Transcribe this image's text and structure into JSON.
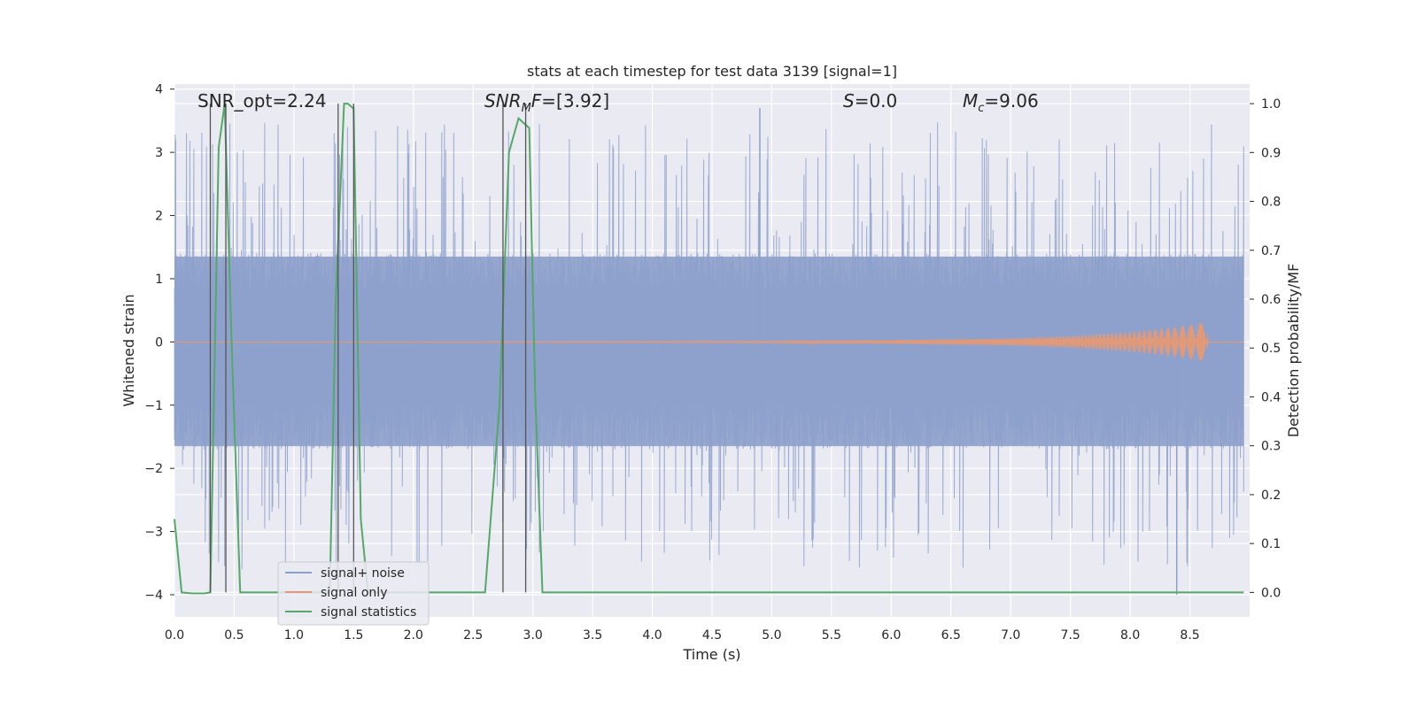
{
  "chart_data": {
    "type": "line",
    "title": "stats at each timestep for test data 3139 [signal=1]",
    "xlabel": "Time (s)",
    "ylabel": "Whitened strain",
    "y2label": "Detection probability/MF",
    "xlim": [
      0.0,
      9.0
    ],
    "ylim": [
      -4.35,
      4.08
    ],
    "y2lim": [
      -0.05,
      1.04
    ],
    "x_ticks": [
      0.0,
      0.5,
      1.0,
      1.5,
      2.0,
      2.5,
      3.0,
      3.5,
      4.0,
      4.5,
      5.0,
      5.5,
      6.0,
      6.5,
      7.0,
      7.5,
      8.0,
      8.5
    ],
    "x_tick_labels": [
      "0.0",
      "0.5",
      "1.0",
      "1.5",
      "2.0",
      "2.5",
      "3.0",
      "3.5",
      "4.0",
      "4.5",
      "5.0",
      "5.5",
      "6.0",
      "6.5",
      "7.0",
      "7.5",
      "8.0",
      "8.5"
    ],
    "y_ticks": [
      4,
      3,
      2,
      1,
      0,
      -1,
      -2,
      -3,
      -4
    ],
    "y_tick_labels": [
      "4",
      "3",
      "2",
      "1",
      "0",
      "−1",
      "−2",
      "−3",
      "−4"
    ],
    "y2_ticks": [
      1.0,
      0.9,
      0.8,
      0.7,
      0.6,
      0.5,
      0.4,
      0.3,
      0.2,
      0.1,
      0.0
    ],
    "y2_tick_labels": [
      "1.0",
      "0.9",
      "0.8",
      "0.7",
      "0.6",
      "0.5",
      "0.4",
      "0.3",
      "0.2",
      "0.1",
      "0.0"
    ],
    "grid": true,
    "legend_placement": "lower-left",
    "series": [
      {
        "name": "signal+ noise",
        "color": "#8da0cb",
        "axis": "left",
        "description_values": {
          "typical_range": [
            -1.7,
            1.4
          ],
          "peak_max": 3.7,
          "peak_min": -4.0
        }
      },
      {
        "name": "signal only",
        "color": "#e09a7a",
        "axis": "left",
        "envelope": {
          "x": [
            0.0,
            5.0,
            6.0,
            7.0,
            7.5,
            8.0,
            8.3,
            8.6,
            8.65
          ],
          "amplitude": [
            0.0,
            0.01,
            0.03,
            0.06,
            0.1,
            0.16,
            0.22,
            0.3,
            0.3
          ]
        },
        "end_x": 8.65
      },
      {
        "name": "signal statistics",
        "color": "#55a868",
        "axis": "right",
        "x": [
          0.0,
          0.06,
          0.15,
          0.25,
          0.3,
          0.37,
          0.42,
          0.48,
          0.55,
          0.6,
          1.0,
          1.3,
          1.35,
          1.42,
          1.45,
          1.5,
          1.56,
          1.62,
          1.7,
          2.0,
          2.5,
          2.6,
          2.72,
          2.8,
          2.88,
          2.97,
          3.02,
          3.08,
          3.5,
          4.0,
          5.0,
          6.0,
          7.0,
          8.0,
          8.95
        ],
        "y": [
          0.15,
          0.0,
          -0.002,
          -0.002,
          0.0,
          0.91,
          1.0,
          0.5,
          0.0,
          0.0,
          0.0,
          0.0,
          0.6,
          1.0,
          1.0,
          0.99,
          0.15,
          0.0,
          0.0,
          0.0,
          0.0,
          0.0,
          0.38,
          0.9,
          0.97,
          0.95,
          0.4,
          0.0,
          0.0,
          0.0,
          0.0,
          0.0,
          0.0,
          0.0,
          0.0
        ]
      }
    ],
    "vlines": [
      0.3,
      0.43,
      1.37,
      1.5,
      2.75,
      2.94
    ],
    "annotations": [
      {
        "text": "SNR_opt=2.24"
      },
      {
        "text": "=[3.92]",
        "italic_prefix": "SNR",
        "sub": "M",
        "italic_suffix": "F"
      },
      {
        "text": "=0.0",
        "italic_prefix": "S"
      },
      {
        "text": "=9.06",
        "italic_prefix": "M",
        "sub": "c"
      }
    ]
  }
}
